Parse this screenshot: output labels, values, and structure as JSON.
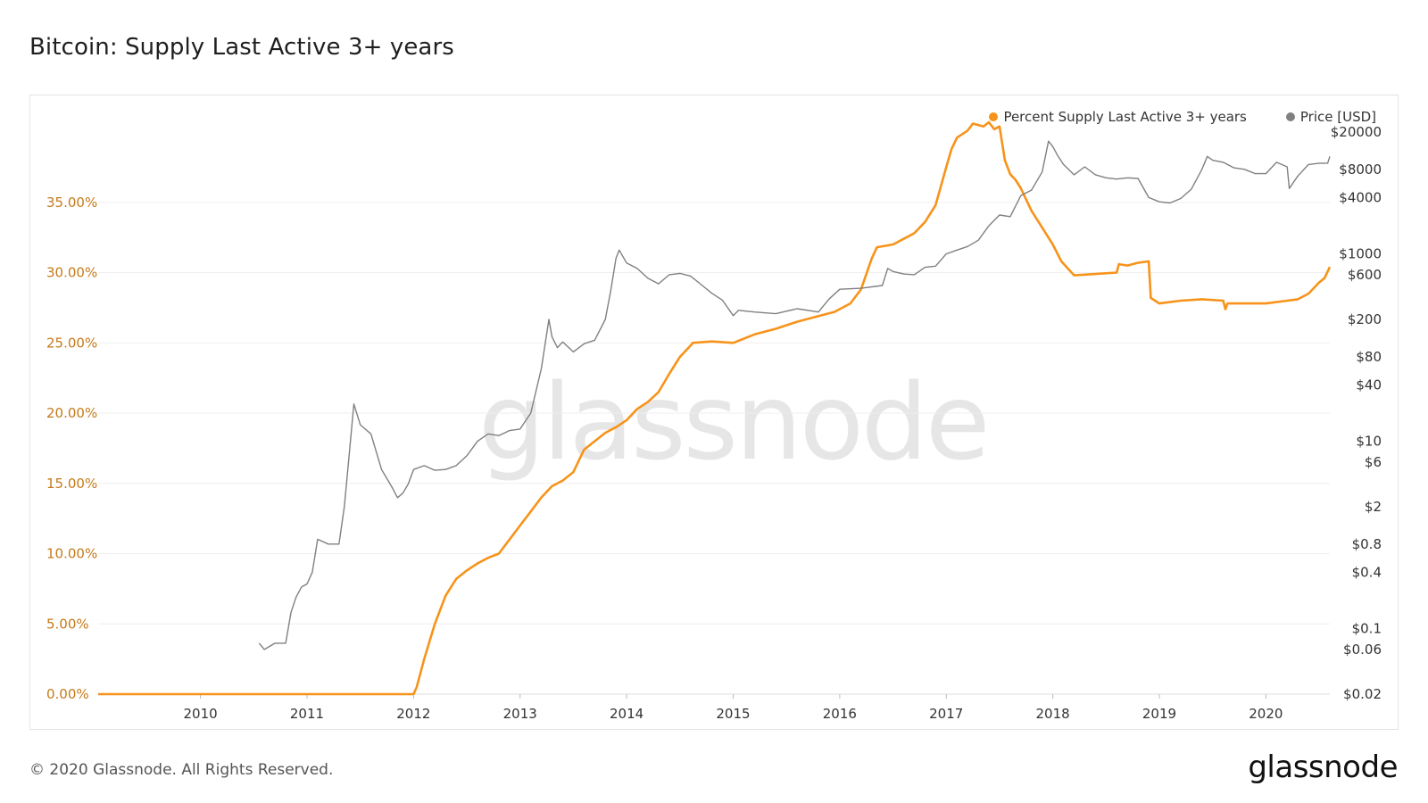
{
  "title": "Bitcoin: Supply Last Active 3+ years",
  "footer": {
    "copyright": "© 2020 Glassnode. All Rights Reserved.",
    "logo": "glassnode"
  },
  "watermark": "glassnode",
  "colors": {
    "supply": "#f7931a",
    "price": "#808080",
    "left_axis": "#c57a1a",
    "grid": "#efefef"
  },
  "chart_data": {
    "type": "line",
    "title": "Bitcoin: Supply Last Active 3+ years",
    "legend_position": "top-right",
    "grid": true,
    "x_ticks": [
      "2010",
      "2011",
      "2012",
      "2013",
      "2014",
      "2015",
      "2016",
      "2017",
      "2018",
      "2019",
      "2020"
    ],
    "x_range": [
      2009.04,
      2020.6
    ],
    "y_left": {
      "ticks": [
        "0.00%",
        "5.00%",
        "10.00%",
        "15.00%",
        "20.00%",
        "25.00%",
        "30.00%",
        "35.00%"
      ],
      "range": [
        0,
        40
      ]
    },
    "y_right": {
      "scale": "log",
      "ticks": [
        "$20000",
        "$8000",
        "$4000",
        "$1000",
        "$600",
        "$200",
        "$80",
        "$40",
        "$10",
        "$6",
        "$2",
        "$0.8",
        "$0.4",
        "$0.1",
        "$0.06",
        "$0.02"
      ],
      "range": [
        0.02,
        20000
      ]
    },
    "series": [
      {
        "name": "Percent Supply Last Active 3+ years",
        "axis": "left",
        "x": [
          2009.04,
          2011.5,
          2012.0,
          2012.03,
          2012.1,
          2012.2,
          2012.3,
          2012.4,
          2012.5,
          2012.6,
          2012.7,
          2012.8,
          2012.9,
          2013.0,
          2013.1,
          2013.2,
          2013.3,
          2013.4,
          2013.5,
          2013.55,
          2013.6,
          2013.7,
          2013.8,
          2013.9,
          2014.0,
          2014.1,
          2014.2,
          2014.3,
          2014.4,
          2014.5,
          2014.6,
          2014.62,
          2014.8,
          2015.0,
          2015.2,
          2015.4,
          2015.6,
          2015.8,
          2015.95,
          2016.1,
          2016.2,
          2016.3,
          2016.35,
          2016.5,
          2016.6,
          2016.7,
          2016.8,
          2016.9,
          2017.0,
          2017.05,
          2017.1,
          2017.2,
          2017.25,
          2017.35,
          2017.4,
          2017.45,
          2017.5,
          2017.55,
          2017.6,
          2017.65,
          2017.7,
          2017.8,
          2017.9,
          2018.0,
          2018.08,
          2018.2,
          2018.4,
          2018.6,
          2018.62,
          2018.7,
          2018.8,
          2018.9,
          2018.92,
          2019.0,
          2019.2,
          2019.4,
          2019.6,
          2019.62,
          2019.64,
          2019.8,
          2020.0,
          2020.2,
          2020.3,
          2020.4,
          2020.5,
          2020.55,
          2020.6
        ],
        "values": [
          0.0,
          0.0,
          0.0,
          0.5,
          2.5,
          5.0,
          7.0,
          8.2,
          8.8,
          9.3,
          9.7,
          10.0,
          11.0,
          12.0,
          13.0,
          14.0,
          14.8,
          15.2,
          15.8,
          16.6,
          17.4,
          18.0,
          18.6,
          19.0,
          19.5,
          20.3,
          20.8,
          21.5,
          22.8,
          24.0,
          24.8,
          25.0,
          25.1,
          25.0,
          25.6,
          26.0,
          26.5,
          26.9,
          27.2,
          27.8,
          28.8,
          31.0,
          31.8,
          32.0,
          32.4,
          32.8,
          33.6,
          34.8,
          37.5,
          38.8,
          39.6,
          40.1,
          40.6,
          40.4,
          40.7,
          40.2,
          40.4,
          38.0,
          37.0,
          36.6,
          36.0,
          34.4,
          33.2,
          32.0,
          30.8,
          29.8,
          29.9,
          30.0,
          30.6,
          30.5,
          30.7,
          30.8,
          28.2,
          27.8,
          28.0,
          28.1,
          28.0,
          27.4,
          27.8,
          27.8,
          27.8,
          28.0,
          28.1,
          28.5,
          29.3,
          29.6,
          30.4
        ]
      },
      {
        "name": "Price [USD]",
        "axis": "right",
        "x": [
          2010.55,
          2010.6,
          2010.7,
          2010.8,
          2010.85,
          2010.9,
          2010.95,
          2011.0,
          2011.05,
          2011.1,
          2011.2,
          2011.3,
          2011.35,
          2011.4,
          2011.44,
          2011.5,
          2011.6,
          2011.7,
          2011.75,
          2011.8,
          2011.85,
          2011.9,
          2011.95,
          2012.0,
          2012.1,
          2012.2,
          2012.3,
          2012.4,
          2012.5,
          2012.6,
          2012.7,
          2012.8,
          2012.9,
          2013.0,
          2013.1,
          2013.2,
          2013.27,
          2013.3,
          2013.35,
          2013.4,
          2013.5,
          2013.6,
          2013.7,
          2013.8,
          2013.85,
          2013.9,
          2013.93,
          2014.0,
          2014.1,
          2014.2,
          2014.3,
          2014.4,
          2014.5,
          2014.6,
          2014.7,
          2014.8,
          2014.9,
          2015.0,
          2015.05,
          2015.2,
          2015.4,
          2015.6,
          2015.8,
          2015.9,
          2016.0,
          2016.2,
          2016.4,
          2016.45,
          2016.5,
          2016.6,
          2016.7,
          2016.8,
          2016.9,
          2017.0,
          2017.1,
          2017.2,
          2017.3,
          2017.4,
          2017.5,
          2017.6,
          2017.7,
          2017.8,
          2017.9,
          2017.96,
          2018.0,
          2018.05,
          2018.1,
          2018.2,
          2018.3,
          2018.4,
          2018.5,
          2018.6,
          2018.7,
          2018.8,
          2018.9,
          2019.0,
          2019.1,
          2019.2,
          2019.3,
          2019.4,
          2019.45,
          2019.5,
          2019.6,
          2019.7,
          2019.8,
          2019.9,
          2020.0,
          2020.1,
          2020.2,
          2020.22,
          2020.3,
          2020.4,
          2020.5,
          2020.58,
          2020.6
        ],
        "values": [
          0.07,
          0.06,
          0.07,
          0.07,
          0.15,
          0.22,
          0.28,
          0.3,
          0.4,
          0.9,
          0.8,
          0.8,
          2.0,
          8.0,
          25.0,
          15.0,
          12.0,
          5.0,
          4.0,
          3.2,
          2.5,
          2.8,
          3.5,
          5.0,
          5.5,
          4.9,
          5.0,
          5.5,
          7.0,
          10.0,
          12.0,
          11.5,
          13.0,
          13.5,
          20.0,
          60.0,
          200.0,
          130.0,
          100.0,
          115.0,
          90.0,
          110.0,
          120.0,
          200.0,
          400.0,
          900.0,
          1100.0,
          800.0,
          700.0,
          550.0,
          480.0,
          600.0,
          620.0,
          580.0,
          470.0,
          380.0,
          320.0,
          220.0,
          250.0,
          240.0,
          230.0,
          260.0,
          240.0,
          330.0,
          420.0,
          430.0,
          460.0,
          700.0,
          650.0,
          610.0,
          600.0,
          720.0,
          740.0,
          1000.0,
          1100.0,
          1200.0,
          1400.0,
          2000.0,
          2600.0,
          2500.0,
          4200.0,
          4800.0,
          7500.0,
          16000.0,
          14000.0,
          11000.0,
          9000.0,
          7000.0,
          8500.0,
          7000.0,
          6500.0,
          6300.0,
          6500.0,
          6400.0,
          4000.0,
          3600.0,
          3500.0,
          3900.0,
          4900.0,
          8000.0,
          11000.0,
          10000.0,
          9500.0,
          8300.0,
          8000.0,
          7200.0,
          7200.0,
          9500.0,
          8500.0,
          5000.0,
          6800.0,
          9000.0,
          9300.0,
          9300.0,
          11000.0
        ]
      }
    ]
  }
}
